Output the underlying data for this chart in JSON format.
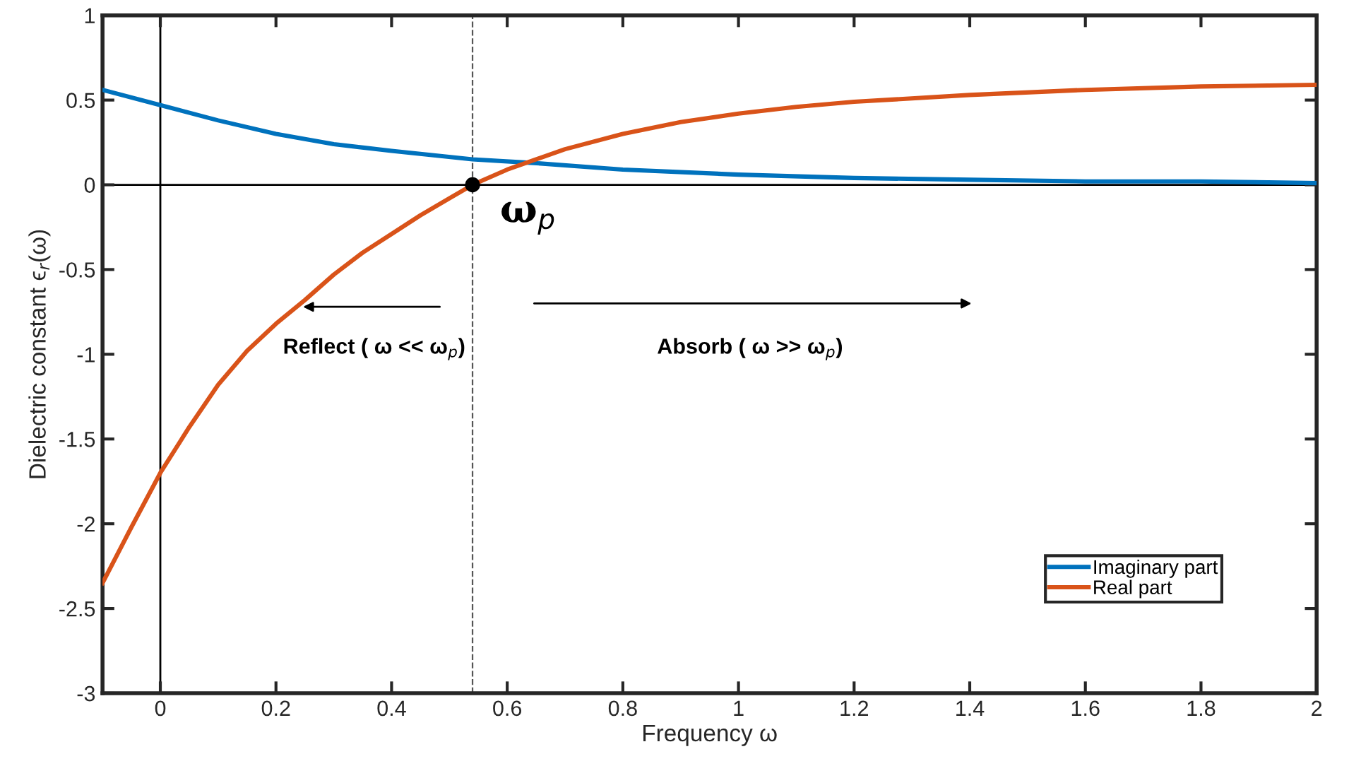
{
  "chart_data": {
    "type": "line",
    "xlabel": "Frequency ω",
    "ylabel": "Dielectric constant ϵ$_{r}$(ω)",
    "xlim": [
      -0.1,
      2
    ],
    "xticks": [
      0,
      0.2,
      0.4,
      0.6,
      0.8,
      1,
      1.2,
      1.4,
      1.6,
      1.8,
      2
    ],
    "ylim": [
      -3,
      1
    ],
    "yticks": [
      -3,
      -2.5,
      -2,
      -1.5,
      -1,
      -0.5,
      0,
      0.5,
      1
    ],
    "grid": false,
    "legend": "bottom right",
    "marker": "none",
    "line_style": "solid",
    "series": [
      {
        "name": "Imaginary part",
        "color": "#0072bd",
        "x": [
          -0.1,
          0,
          0.1,
          0.2,
          0.3,
          0.4,
          0.54,
          0.64,
          0.8,
          1.0,
          1.2,
          1.4,
          1.6,
          1.8,
          2.0
        ],
        "values": [
          0.56,
          0.47,
          0.38,
          0.3,
          0.24,
          0.2,
          0.15,
          0.13,
          0.09,
          0.06,
          0.04,
          0.03,
          0.02,
          0.02,
          0.01
        ]
      },
      {
        "name": "Real part",
        "color": "#d95319",
        "x": [
          -0.1,
          -0.05,
          0,
          0.05,
          0.1,
          0.15,
          0.2,
          0.25,
          0.3,
          0.35,
          0.4,
          0.45,
          0.5,
          0.54,
          0.6,
          0.7,
          0.8,
          0.9,
          1.0,
          1.1,
          1.2,
          1.4,
          1.6,
          1.8,
          2.0
        ],
        "values": [
          -2.35,
          -2.02,
          -1.7,
          -1.43,
          -1.18,
          -0.98,
          -0.82,
          -0.68,
          -0.53,
          -0.4,
          -0.29,
          -0.18,
          -0.08,
          0.0,
          0.09,
          0.21,
          0.3,
          0.37,
          0.42,
          0.46,
          0.49,
          0.53,
          0.56,
          0.58,
          0.59
        ]
      },
      {
        "type": "scatter",
        "color": "#000000",
        "marker": "circle",
        "x": [
          0.54
        ],
        "values": [
          0
        ]
      }
    ],
    "ref_lines": [
      {
        "axis": "y",
        "value": 0,
        "color": "#000000",
        "line_style": "solid"
      },
      {
        "axis": "x",
        "value": 0,
        "color": "#000000",
        "line_style": "solid"
      },
      {
        "axis": "x",
        "value": 0.54,
        "color": "#555555",
        "line_style": "dashed"
      }
    ],
    "annotations": [
      {
        "text": "ω$_{p}$",
        "x": 0.54,
        "y": 0
      },
      "Reflect ( ω << ω$_{p}$)",
      "Absorb ( ω >> ω$_{p}$)"
    ]
  }
}
